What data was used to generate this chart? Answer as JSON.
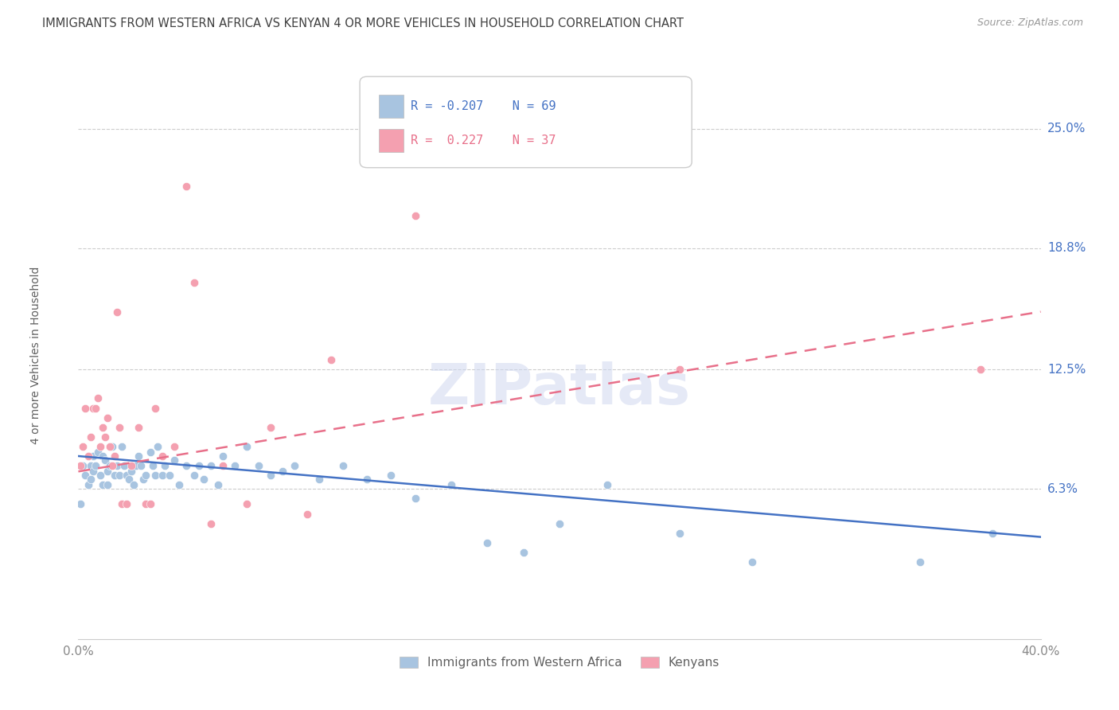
{
  "title": "IMMIGRANTS FROM WESTERN AFRICA VS KENYAN 4 OR MORE VEHICLES IN HOUSEHOLD CORRELATION CHART",
  "source": "Source: ZipAtlas.com",
  "ylabel": "4 or more Vehicles in Household",
  "ytick_labels": [
    "25.0%",
    "18.8%",
    "12.5%",
    "6.3%"
  ],
  "ytick_values": [
    25.0,
    18.8,
    12.5,
    6.3
  ],
  "xlim": [
    0.0,
    40.0
  ],
  "ylim": [
    -1.5,
    28.0
  ],
  "watermark": "ZIPatlas",
  "legend_blue_R": "-0.207",
  "legend_blue_N": "69",
  "legend_pink_R": "0.227",
  "legend_pink_N": "37",
  "legend_label_blue": "Immigrants from Western Africa",
  "legend_label_pink": "Kenyans",
  "blue_color": "#a8c4e0",
  "pink_color": "#f4a0b0",
  "blue_line_color": "#4472c4",
  "pink_line_color": "#e8708a",
  "title_color": "#404040",
  "right_label_color": "#4472c4",
  "blue_points_x": [
    0.1,
    0.2,
    0.3,
    0.4,
    0.5,
    0.5,
    0.6,
    0.6,
    0.7,
    0.8,
    0.9,
    1.0,
    1.0,
    1.1,
    1.2,
    1.2,
    1.3,
    1.4,
    1.5,
    1.5,
    1.6,
    1.7,
    1.8,
    1.9,
    2.0,
    2.1,
    2.2,
    2.3,
    2.4,
    2.5,
    2.6,
    2.7,
    2.8,
    3.0,
    3.1,
    3.2,
    3.3,
    3.5,
    3.6,
    3.8,
    4.0,
    4.2,
    4.5,
    4.8,
    5.0,
    5.2,
    5.5,
    5.8,
    6.0,
    6.5,
    7.0,
    7.5,
    8.0,
    8.5,
    9.0,
    10.0,
    11.0,
    12.0,
    13.0,
    14.0,
    15.5,
    17.0,
    18.5,
    20.0,
    22.0,
    25.0,
    28.0,
    35.0,
    38.0
  ],
  "blue_points_y": [
    5.5,
    7.5,
    7.0,
    6.5,
    6.8,
    7.5,
    7.2,
    8.0,
    7.5,
    8.2,
    7.0,
    6.5,
    8.0,
    7.8,
    6.5,
    7.2,
    7.5,
    8.5,
    7.0,
    8.0,
    7.5,
    7.0,
    8.5,
    7.5,
    7.0,
    6.8,
    7.2,
    6.5,
    7.5,
    8.0,
    7.5,
    6.8,
    7.0,
    8.2,
    7.5,
    7.0,
    8.5,
    7.0,
    7.5,
    7.0,
    7.8,
    6.5,
    7.5,
    7.0,
    7.5,
    6.8,
    7.5,
    6.5,
    8.0,
    7.5,
    8.5,
    7.5,
    7.0,
    7.2,
    7.5,
    6.8,
    7.5,
    6.8,
    7.0,
    5.8,
    6.5,
    3.5,
    3.0,
    4.5,
    6.5,
    4.0,
    2.5,
    2.5,
    4.0
  ],
  "pink_points_x": [
    0.1,
    0.2,
    0.3,
    0.4,
    0.5,
    0.6,
    0.7,
    0.8,
    0.9,
    1.0,
    1.1,
    1.2,
    1.3,
    1.4,
    1.5,
    1.6,
    1.7,
    1.8,
    2.0,
    2.2,
    2.5,
    2.8,
    3.0,
    3.2,
    3.5,
    4.0,
    4.5,
    4.8,
    5.5,
    6.0,
    7.0,
    8.0,
    9.5,
    10.5,
    14.0,
    25.0,
    37.5
  ],
  "pink_points_y": [
    7.5,
    8.5,
    10.5,
    8.0,
    9.0,
    10.5,
    10.5,
    11.0,
    8.5,
    9.5,
    9.0,
    10.0,
    8.5,
    7.5,
    8.0,
    15.5,
    9.5,
    5.5,
    5.5,
    7.5,
    9.5,
    5.5,
    5.5,
    10.5,
    8.0,
    8.5,
    22.0,
    17.0,
    4.5,
    7.5,
    5.5,
    9.5,
    5.0,
    13.0,
    20.5,
    12.5,
    12.5
  ],
  "blue_line_y_start": 8.0,
  "blue_line_y_end": 3.8,
  "pink_line_y_start": 7.2,
  "pink_line_y_end": 15.5
}
